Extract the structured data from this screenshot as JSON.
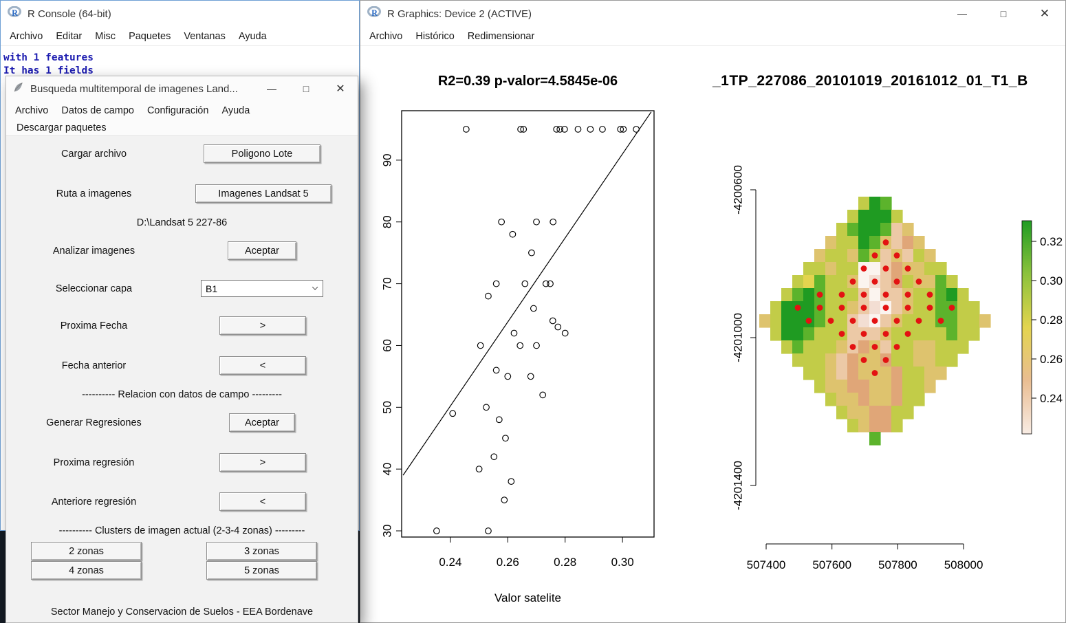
{
  "console": {
    "title": "R Console (64-bit)",
    "menu": [
      "Archivo",
      "Editar",
      "Misc",
      "Paquetes",
      "Ventanas",
      "Ayuda"
    ],
    "lines": [
      "with 1 features",
      "It has 1 fields"
    ]
  },
  "dialog": {
    "title": "Busqueda multitemporal de imagenes Land...",
    "controls": {
      "minimize": "—",
      "maximize": "□",
      "close": "✕"
    },
    "menu": [
      "Archivo",
      "Datos de campo",
      "Configuración",
      "Ayuda"
    ],
    "menu2": "Descargar paquetes",
    "cargar_label": "Cargar archivo",
    "cargar_btn": "Poligono Lote",
    "ruta_label": "Ruta a imagenes",
    "ruta_btn": "Imagenes Landsat 5",
    "path_text": "D:\\Landsat 5 227-86",
    "analizar_label": "Analizar imagenes",
    "analizar_btn": "Aceptar",
    "capa_label": "Seleccionar capa",
    "capa_value": "B1",
    "proxima_fecha_label": "Proxima Fecha",
    "proxima_fecha_btn": ">",
    "fecha_anterior_label": "Fecha anterior",
    "fecha_anterior_btn": "<",
    "sep_relacion": "---------- Relacion con datos de campo ---------",
    "regresiones_label": "Generar Regresiones",
    "regresiones_btn": "Aceptar",
    "proxima_regresion_label": "Proxima regresión",
    "proxima_regresion_btn": ">",
    "anterior_regresion_label": "Anteriore regresión",
    "anterior_regresion_btn": "<",
    "sep_clusters": "---------- Clusters de imagen actual (2-3-4 zonas) ---------",
    "zonas": [
      "2 zonas",
      "3 zonas",
      "4 zonas",
      "5 zonas"
    ],
    "footer": "Sector Manejo y Conservacion de Suelos - EEA Bordenave"
  },
  "graphics": {
    "title": "R Graphics: Device 2 (ACTIVE)",
    "controls": {
      "minimize": "—",
      "maximize": "□",
      "close": "✕"
    },
    "menu": [
      "Archivo",
      "Histórico",
      "Redimensionar"
    ]
  },
  "chart_data": [
    {
      "type": "scatter",
      "title": "R2=0.39 p-valor=4.5845e-06",
      "xlabel": "Valor satelite",
      "ylabel": "",
      "xlim": [
        0.223,
        0.311
      ],
      "ylim": [
        29,
        98
      ],
      "xticks": [
        0.24,
        0.26,
        0.28,
        0.3
      ],
      "yticks": [
        30,
        40,
        50,
        60,
        70,
        80,
        90
      ],
      "grid": false,
      "legend_position": "none",
      "points": [
        [
          0.2455,
          95
        ],
        [
          0.2645,
          95
        ],
        [
          0.2655,
          95
        ],
        [
          0.277,
          95
        ],
        [
          0.2782,
          95
        ],
        [
          0.2798,
          95
        ],
        [
          0.2845,
          95
        ],
        [
          0.2888,
          95
        ],
        [
          0.293,
          95
        ],
        [
          0.2993,
          95
        ],
        [
          0.3003,
          95
        ],
        [
          0.3048,
          95
        ],
        [
          0.2578,
          80
        ],
        [
          0.2617,
          78
        ],
        [
          0.27,
          80
        ],
        [
          0.2758,
          80
        ],
        [
          0.2683,
          75
        ],
        [
          0.2532,
          68
        ],
        [
          0.256,
          70
        ],
        [
          0.266,
          70
        ],
        [
          0.2733,
          70
        ],
        [
          0.2748,
          70
        ],
        [
          0.269,
          66
        ],
        [
          0.2757,
          64
        ],
        [
          0.2775,
          63
        ],
        [
          0.28,
          62
        ],
        [
          0.2505,
          60
        ],
        [
          0.2622,
          62
        ],
        [
          0.2643,
          60
        ],
        [
          0.27,
          60
        ],
        [
          0.256,
          56
        ],
        [
          0.26,
          55
        ],
        [
          0.268,
          55
        ],
        [
          0.2722,
          52
        ],
        [
          0.2408,
          49
        ],
        [
          0.2525,
          50
        ],
        [
          0.257,
          48
        ],
        [
          0.2592,
          45
        ],
        [
          0.25,
          40
        ],
        [
          0.2552,
          42
        ],
        [
          0.2612,
          38
        ],
        [
          0.2588,
          35
        ],
        [
          0.2352,
          30
        ],
        [
          0.2532,
          30
        ]
      ],
      "regression_line": [
        [
          0.2235,
          39.0
        ],
        [
          0.31,
          97.8
        ]
      ]
    },
    {
      "type": "heatmap",
      "title": "_1TP_227086_20101019_20161012_01_T1_B",
      "xlabel": "",
      "ylabel": "",
      "xticks": [
        507400,
        507600,
        507800,
        508000
      ],
      "yticks": [
        -4200600,
        -4201000,
        -4201400
      ],
      "dot_color": "#e31212",
      "palette": {
        "G": "#1f9b22",
        "g": "#5cb32c",
        "y": "#c2cc48",
        "Y": "#e3d44f",
        "t": "#dec36e",
        "o": "#e0a678",
        "p": "#ecc9a6",
        "P": "#f3ded3",
        "w": "#fbf4ef"
      },
      "grid_rows": [
        ".........yGg.........",
        "........yGGGy........",
        ".......ygGGgpt.......",
        "......tyyGgtpot......",
        ".....tyytgyptpyt.....",
        "....yytyywwpottyy....",
        "...yYgyytwPpoyttgy...",
        "..ygGgyyypwpptyygGy..",
        ".yGGGgyytpPwptyyggyy.",
        "tyGGGgyypPwptyyyggyyt",
        ".yGGgyyyppptyyyyygyy.",
        "..ygyyytpotpyyttyyy..",
        "...yyytpottoyyttyy...",
        "....yytpotttoyytt....",
        ".....yttoottoyyt.....",
        "......yttottoyy......",
        ".......yttooyy.......",
        "........ytooy........",
        "..........g.........."
      ],
      "red_dots": [
        [
          3,
          11
        ],
        [
          4,
          10
        ],
        [
          4,
          12
        ],
        [
          5,
          9
        ],
        [
          5,
          11
        ],
        [
          5,
          13
        ],
        [
          6,
          8
        ],
        [
          6,
          10
        ],
        [
          6,
          12
        ],
        [
          6,
          14
        ],
        [
          7,
          5
        ],
        [
          7,
          7
        ],
        [
          7,
          9
        ],
        [
          7,
          11
        ],
        [
          7,
          13
        ],
        [
          7,
          15
        ],
        [
          8,
          3
        ],
        [
          8,
          5
        ],
        [
          8,
          7
        ],
        [
          8,
          9
        ],
        [
          8,
          11
        ],
        [
          8,
          13
        ],
        [
          8,
          15
        ],
        [
          8,
          17
        ],
        [
          9,
          4
        ],
        [
          9,
          6
        ],
        [
          9,
          8
        ],
        [
          9,
          10
        ],
        [
          9,
          12
        ],
        [
          9,
          14
        ],
        [
          9,
          16
        ],
        [
          10,
          7
        ],
        [
          10,
          9
        ],
        [
          10,
          11
        ],
        [
          10,
          13
        ],
        [
          11,
          8
        ],
        [
          11,
          10
        ],
        [
          11,
          12
        ],
        [
          12,
          9
        ],
        [
          12,
          11
        ],
        [
          13,
          10
        ]
      ],
      "legend": {
        "position": "right",
        "ticks": [
          0.32,
          0.3,
          0.28,
          0.26,
          0.24
        ],
        "gradient": [
          "#1f9b22",
          "#8cc23c",
          "#e3d44f",
          "#e9bd92",
          "#f8ece4"
        ]
      }
    }
  ]
}
